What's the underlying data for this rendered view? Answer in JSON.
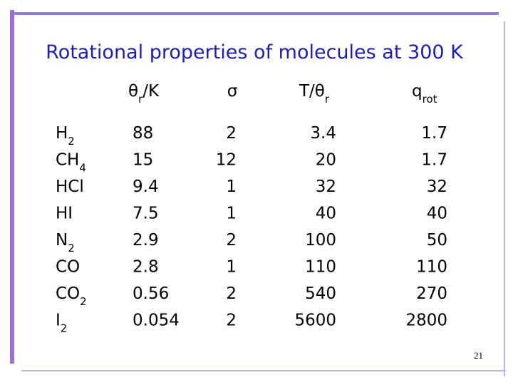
{
  "title": "Rotational properties of molecules at 300 K",
  "table": {
    "header": [
      [
        {
          "text": "θ"
        },
        {
          "text": "r",
          "sub": true
        },
        {
          "text": "/K"
        }
      ],
      [
        {
          "text": "σ"
        }
      ],
      [
        {
          "text": "T/θ"
        },
        {
          "text": "r",
          "sub": true
        }
      ],
      [
        {
          "text": "q"
        },
        {
          "text": "rot",
          "sub": true
        }
      ]
    ],
    "rows": [
      {
        "name": [
          {
            "text": "H"
          },
          {
            "text": "2",
            "sub": true
          }
        ],
        "cells": [
          "88",
          "2",
          "3.4",
          "1.7"
        ]
      },
      {
        "name": [
          {
            "text": "CH"
          },
          {
            "text": "4",
            "sub": true
          }
        ],
        "cells": [
          "15",
          "12",
          "20",
          "1.7"
        ]
      },
      {
        "name": [
          {
            "text": "HCl"
          }
        ],
        "cells": [
          "9.4",
          "1",
          "32",
          "32"
        ]
      },
      {
        "name": [
          {
            "text": "HI"
          }
        ],
        "cells": [
          "7.5",
          "1",
          "40",
          "40"
        ]
      },
      {
        "name": [
          {
            "text": "N"
          },
          {
            "text": "2",
            "sub": true
          }
        ],
        "cells": [
          "2.9",
          "2",
          "100",
          "50"
        ]
      },
      {
        "name": [
          {
            "text": "CO"
          }
        ],
        "cells": [
          "2.8",
          "1",
          "110",
          "110"
        ]
      },
      {
        "name": [
          {
            "text": "CO"
          },
          {
            "text": "2",
            "sub": true
          }
        ],
        "cells": [
          "0.56",
          "2",
          "540",
          "270"
        ]
      },
      {
        "name": [
          {
            "text": "I"
          },
          {
            "text": "2",
            "sub": true
          }
        ],
        "cells": [
          "0.054",
          "2",
          "5600",
          "2800"
        ]
      }
    ]
  },
  "page_number": "21"
}
